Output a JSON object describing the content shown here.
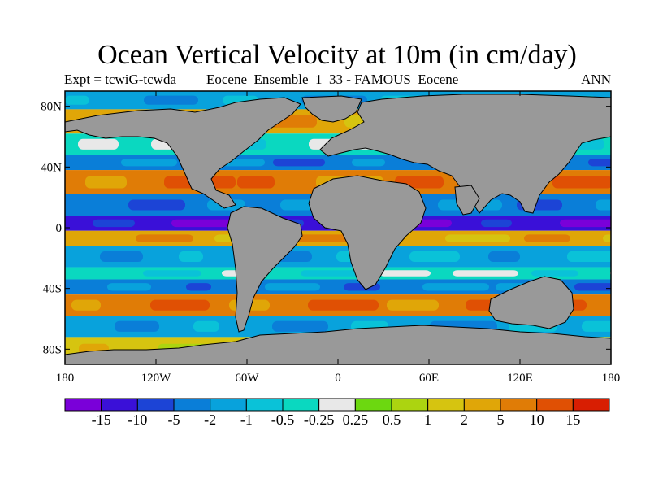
{
  "title": "Ocean Vertical Velocity at 10m (in cm/day)",
  "subtitle_left": "Expt = tcwiG-tcwda",
  "subtitle_center": "Eocene_Ensemble_1_33 - FAMOUS_Eocene",
  "subtitle_right": "ANN",
  "land_color": "#999999",
  "coastline_color": "#000000",
  "map": {
    "projection": "cylindrical-equidistant",
    "lon_range": [
      -180,
      180
    ],
    "lat_range": [
      -90,
      90
    ],
    "lat_ticks": [
      {
        "value": 80,
        "label": "80N"
      },
      {
        "value": 40,
        "label": "40N"
      },
      {
        "value": 0,
        "label": "0"
      },
      {
        "value": -40,
        "label": "40S"
      },
      {
        "value": -80,
        "label": "80S"
      }
    ],
    "lon_ticks": [
      {
        "value": -180,
        "label": "180"
      },
      {
        "value": -120,
        "label": "120W"
      },
      {
        "value": -60,
        "label": "60W"
      },
      {
        "value": 0,
        "label": "0"
      },
      {
        "value": 60,
        "label": "60E"
      },
      {
        "value": 120,
        "label": "120E"
      },
      {
        "value": 180,
        "label": "180"
      }
    ]
  },
  "colorbar": {
    "colors": [
      "#7a00d9",
      "#3a10d8",
      "#1c44d6",
      "#0a7ed8",
      "#08a2dc",
      "#0ac2d8",
      "#0ad8c0",
      "#e8e8e8",
      "#6cd810",
      "#acd410",
      "#d6c410",
      "#e0a608",
      "#e07c06",
      "#e05004",
      "#d81e02"
    ],
    "labels": [
      "-15",
      "-10",
      "-5",
      "-2",
      "-1",
      "-0.5",
      "-0.25",
      "0.25",
      "0.5",
      "1",
      "2",
      "5",
      "10",
      "15"
    ]
  },
  "chart_data": {
    "type": "heatmap",
    "title": "Ocean Vertical Velocity at 10m (in cm/day)",
    "xlabel": "",
    "ylabel": "",
    "xlim": [
      -180,
      180
    ],
    "ylim": [
      -90,
      90
    ],
    "levels": [
      -15,
      -10,
      -5,
      -2,
      -1,
      -0.5,
      -0.25,
      0.25,
      0.5,
      1,
      2,
      5,
      10,
      15
    ],
    "zonal_bands": [
      {
        "lat_from": 90,
        "lat_to": 78,
        "level": "-1"
      },
      {
        "lat_from": 78,
        "lat_to": 62,
        "level": "2"
      },
      {
        "lat_from": 62,
        "lat_to": 48,
        "level": "-0.25"
      },
      {
        "lat_from": 48,
        "lat_to": 38,
        "level": "-2"
      },
      {
        "lat_from": 38,
        "lat_to": 22,
        "level": "5"
      },
      {
        "lat_from": 22,
        "lat_to": 8,
        "level": "-2"
      },
      {
        "lat_from": 8,
        "lat_to": -2,
        "level": "-10"
      },
      {
        "lat_from": -2,
        "lat_to": -12,
        "level": "2"
      },
      {
        "lat_from": -12,
        "lat_to": -26,
        "level": "-1"
      },
      {
        "lat_from": -26,
        "lat_to": -34,
        "level": "-0.25"
      },
      {
        "lat_from": -34,
        "lat_to": -44,
        "level": "-2"
      },
      {
        "lat_from": -44,
        "lat_to": -58,
        "level": "5"
      },
      {
        "lat_from": -58,
        "lat_to": -72,
        "level": "-1"
      },
      {
        "lat_from": -72,
        "lat_to": -90,
        "level": "1"
      }
    ]
  }
}
